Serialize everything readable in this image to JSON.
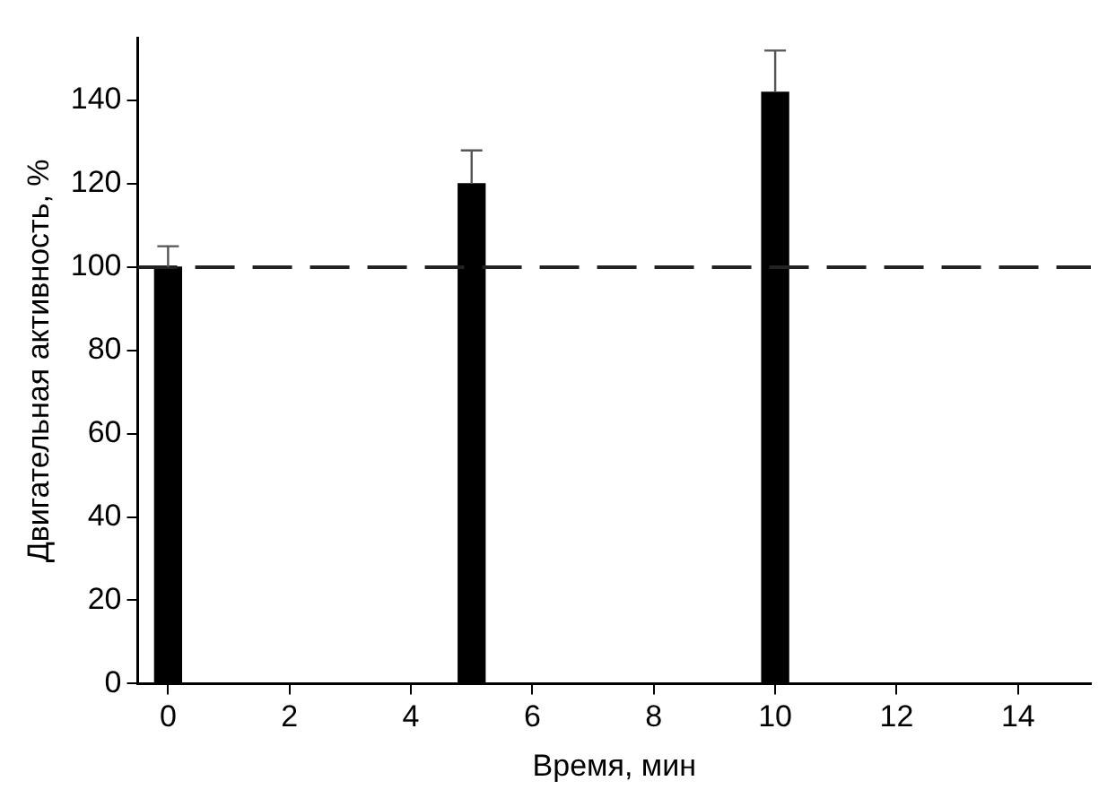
{
  "chart_data": {
    "type": "bar",
    "xlabel": "Время, мин",
    "ylabel": "Двигательная активность, %",
    "x": [
      0,
      5,
      10
    ],
    "values": [
      100,
      120,
      142
    ],
    "color": "#000000",
    "errors": [
      [
        100,
        105
      ],
      [
        120,
        128
      ],
      [
        142,
        152
      ]
    ],
    "xlim": [
      -0.5,
      15.2
    ],
    "xticks": [
      0,
      2,
      4,
      6,
      8,
      10,
      12,
      14
    ],
    "ylim": [
      0,
      155
    ],
    "yticks": [
      0,
      20,
      40,
      60,
      80,
      100,
      120,
      140
    ],
    "ref_lines": [
      {
        "axis": "y",
        "value": 100,
        "line_style": "dashed",
        "color": "#222222"
      }
    ],
    "grid": false,
    "legend": false
  }
}
